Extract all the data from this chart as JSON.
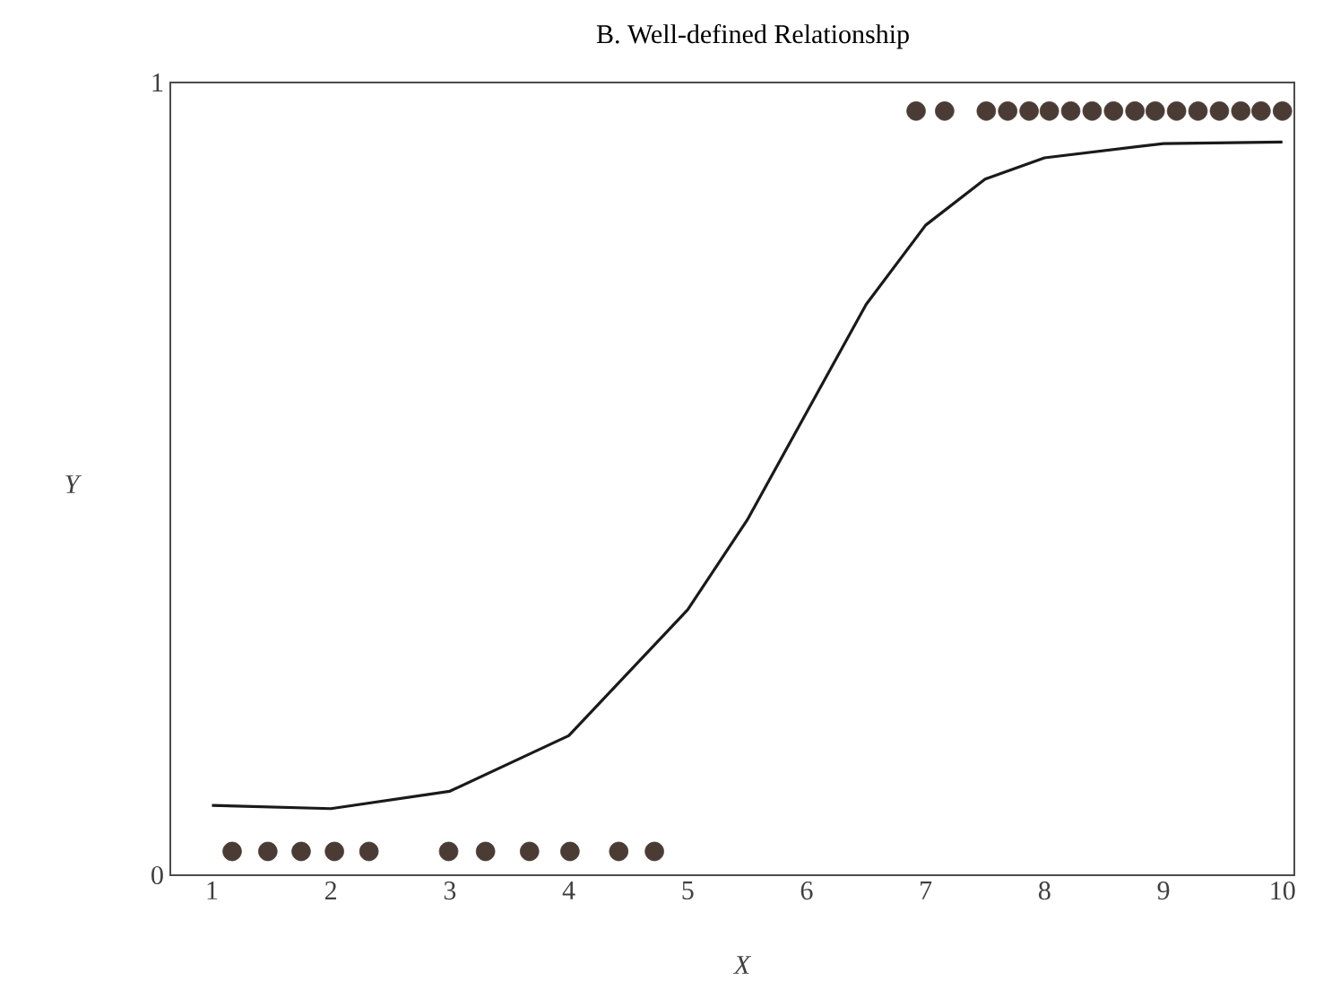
{
  "chart_data": {
    "type": "scatter",
    "title": "B. Well-defined Relationship",
    "xlabel": "X",
    "ylabel": "Y",
    "xlim": [
      0.65,
      10.1
    ],
    "ylim": [
      0,
      1
    ],
    "xticks": [
      1,
      2,
      3,
      4,
      5,
      6,
      7,
      8,
      9,
      10
    ],
    "yticks": [
      0,
      1
    ],
    "grid": false,
    "series": [
      {
        "color": "#4a3c35",
        "marker": "circle",
        "x": [
          1.17,
          1.47,
          1.75,
          2.03,
          2.32,
          2.99,
          3.3,
          3.67,
          4.01,
          4.42,
          4.72,
          6.92,
          7.16,
          7.51,
          7.69,
          7.87,
          8.04,
          8.22,
          8.4,
          8.58,
          8.76,
          8.93,
          9.11,
          9.29,
          9.47,
          9.65,
          9.82,
          10.0
        ],
        "values": [
          0.03,
          0.03,
          0.03,
          0.03,
          0.03,
          0.03,
          0.03,
          0.03,
          0.03,
          0.03,
          0.03,
          0.964,
          0.964,
          0.964,
          0.964,
          0.964,
          0.964,
          0.964,
          0.964,
          0.964,
          0.964,
          0.964,
          0.964,
          0.964,
          0.964,
          0.964,
          0.964,
          0.964
        ]
      },
      {
        "type": "line",
        "color": "#1a1a1a",
        "marker": "none",
        "line_style": "solid",
        "x": [
          1,
          2,
          3,
          4,
          5,
          5.5,
          6,
          6.5,
          7,
          7.5,
          8,
          9,
          10
        ],
        "values": [
          0.088,
          0.084,
          0.106,
          0.176,
          0.335,
          0.448,
          0.584,
          0.72,
          0.82,
          0.878,
          0.905,
          0.923,
          0.925
        ]
      }
    ]
  }
}
